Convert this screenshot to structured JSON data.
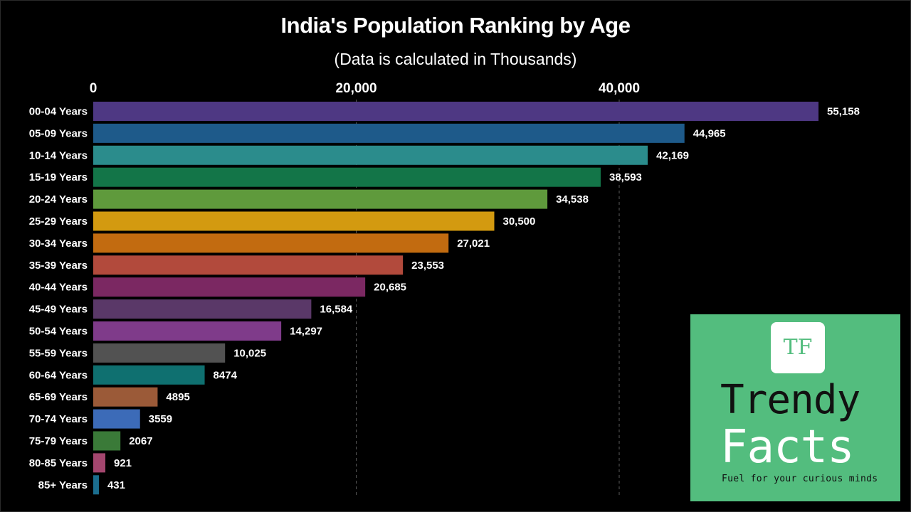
{
  "chart_data": {
    "type": "bar",
    "orientation": "horizontal",
    "title": "India's Population Ranking by Age",
    "subtitle": "(Data is calculated in Thousands)",
    "xlabel": "",
    "ylabel": "",
    "xlim": [
      0,
      60000
    ],
    "x_ticks": [
      0,
      20000,
      40000
    ],
    "x_tick_labels": [
      "0",
      "20,000",
      "40,000"
    ],
    "grid": "vertical dashed",
    "categories": [
      "00-04 Years",
      "05-09 Years",
      "10-14 Years",
      "15-19 Years",
      "20-24 Years",
      "25-29 Years",
      "30-34 Years",
      "35-39 Years",
      "40-44 Years",
      "45-49 Years",
      "50-54 Years",
      "55-59 Years",
      "60-64 Years",
      "65-69 Years",
      "70-74 Years",
      "75-79 Years",
      "80-85 Years",
      "85+ Years"
    ],
    "values": [
      55158,
      44965,
      42169,
      38593,
      34538,
      30500,
      27021,
      23553,
      20685,
      16584,
      14297,
      10025,
      8474,
      4895,
      3559,
      2067,
      921,
      431
    ],
    "value_labels": [
      "55,158",
      "44,965",
      "42,169",
      "38,593",
      "34,538",
      "30,500",
      "27,021",
      "23,553",
      "20,685",
      "16,584",
      "14,297",
      "10,025",
      "8474",
      "4895",
      "3559",
      "2067",
      "921",
      "431"
    ],
    "colors": [
      "#4e3883",
      "#1e5a8a",
      "#2b8c8c",
      "#137548",
      "#5f9a3c",
      "#d39a10",
      "#c26b10",
      "#b24a3c",
      "#7b2862",
      "#5a3868",
      "#7f3b8a",
      "#525252",
      "#0f7070",
      "#9b5a38",
      "#3c6bb8",
      "#3a7a38",
      "#a3466e",
      "#1b6e8f"
    ]
  },
  "logo": {
    "badge": "TF",
    "word1": "Trendy",
    "word2": "Facts",
    "tagline": "Fuel for your curious minds"
  }
}
